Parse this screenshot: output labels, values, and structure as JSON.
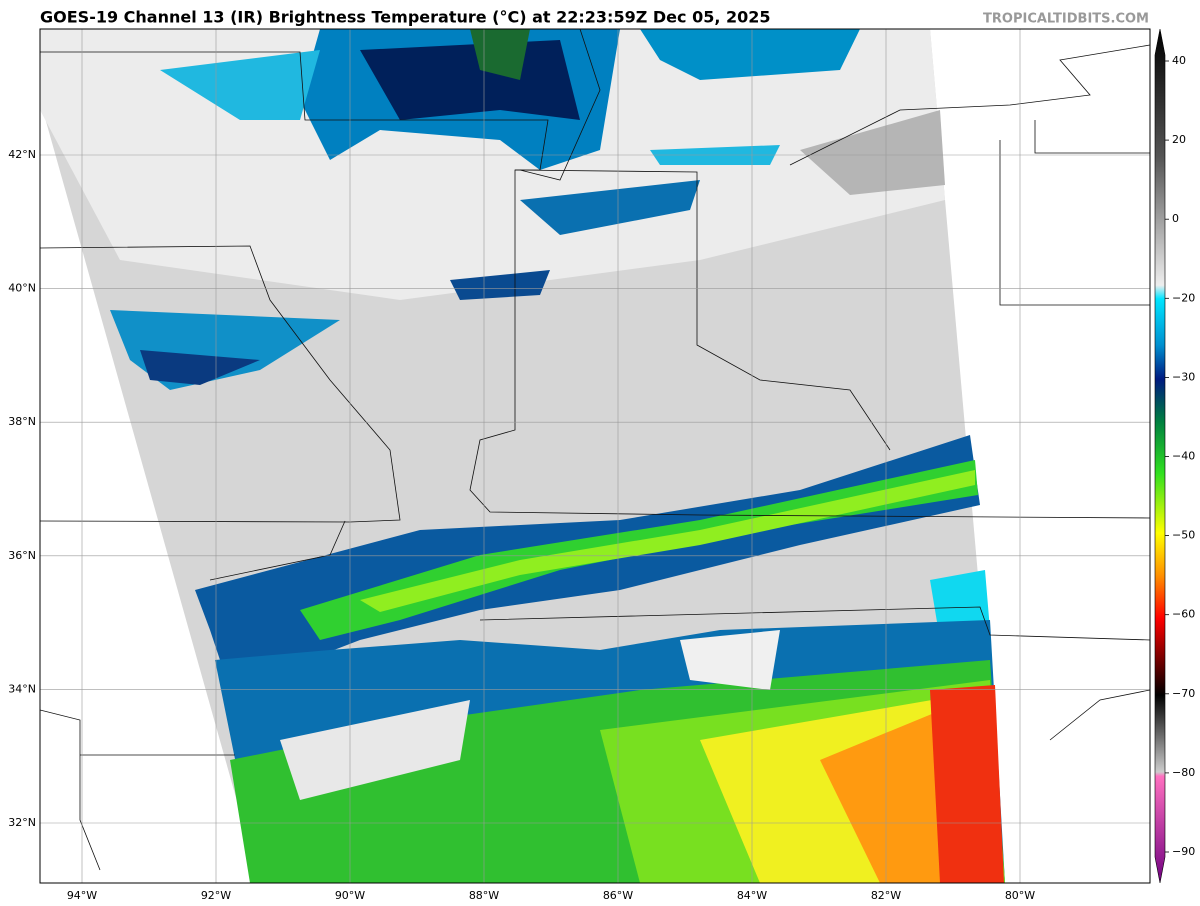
{
  "header": {
    "title": "GOES-19 Channel 13 (IR) Brightness Temperature (°C) at 22:23:59Z Dec 05, 2025",
    "credit": "TROPICALTIDBITS.COM"
  },
  "map": {
    "lat_labels": [
      "42°N",
      "40°N",
      "38°N",
      "36°N",
      "34°N",
      "32°N"
    ],
    "lon_labels": [
      "94°W",
      "92°W",
      "90°W",
      "88°W",
      "86°W",
      "84°W",
      "82°W",
      "80°W"
    ]
  },
  "colorbar": {
    "tick_labels": [
      "40",
      "20",
      "0",
      "−20",
      "−30",
      "−40",
      "−50",
      "−60",
      "−70",
      "−80",
      "−90"
    ]
  }
}
